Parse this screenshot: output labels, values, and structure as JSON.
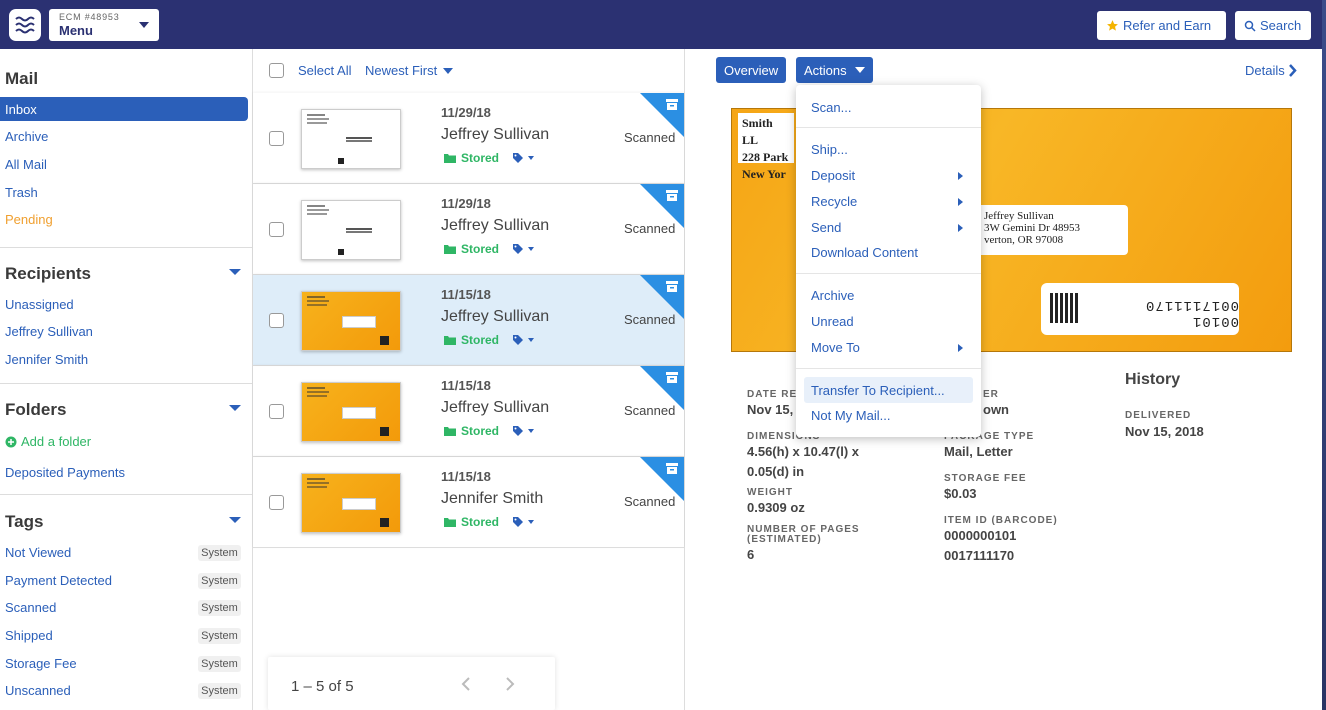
{
  "header": {
    "account_id": "ECM #48953",
    "menu_label": "Menu",
    "refer_label": "Refer and Earn",
    "search_label": "Search"
  },
  "sidebar": {
    "mail_title": "Mail",
    "mail_items": [
      "Inbox",
      "Archive",
      "All Mail",
      "Trash",
      "Pending"
    ],
    "recipients_title": "Recipients",
    "recipients": [
      "Unassigned",
      "Jeffrey Sullivan",
      "Jennifer Smith"
    ],
    "folders_title": "Folders",
    "add_folder": "Add a folder",
    "folders": [
      "Deposited Payments"
    ],
    "tags_title": "Tags",
    "tags": [
      {
        "label": "Not Viewed",
        "badge": "System"
      },
      {
        "label": "Payment Detected",
        "badge": "System"
      },
      {
        "label": "Scanned",
        "badge": "System"
      },
      {
        "label": "Shipped",
        "badge": "System"
      },
      {
        "label": "Storage Fee",
        "badge": "System"
      },
      {
        "label": "Unscanned",
        "badge": "System"
      }
    ]
  },
  "list": {
    "select_all": "Select All",
    "sort": "Newest First",
    "rows": [
      {
        "date": "11/29/18",
        "name": "Jeffrey Sullivan",
        "stored": "Stored",
        "status": "Scanned",
        "thumb": "white"
      },
      {
        "date": "11/29/18",
        "name": "Jeffrey Sullivan",
        "stored": "Stored",
        "status": "Scanned",
        "thumb": "white"
      },
      {
        "date": "11/15/18",
        "name": "Jeffrey Sullivan",
        "stored": "Stored",
        "status": "Scanned",
        "thumb": "orange"
      },
      {
        "date": "11/15/18",
        "name": "Jeffrey Sullivan",
        "stored": "Stored",
        "status": "Scanned",
        "thumb": "orange"
      },
      {
        "date": "11/15/18",
        "name": "Jennifer Smith",
        "stored": "Stored",
        "status": "Scanned",
        "thumb": "orange"
      }
    ],
    "pagination": "1 – 5 of 5"
  },
  "detail": {
    "overview_label": "Overview",
    "actions_label": "Actions",
    "details_label": "Details",
    "envelope": {
      "return_lines": [
        "Smith LL",
        "228 Park",
        "New Yor"
      ],
      "address_lines": [
        "Jeffrey Sullivan",
        "3W Gemini Dr 48953",
        "verton, OR 97008"
      ],
      "barcode": "00101 0017111170"
    },
    "fields": {
      "date_label": "DATE RE",
      "date_value": "Nov 15,",
      "sender_label": "ER",
      "sender_value": "own",
      "dimensions_label": "DIMENSIONS",
      "dimensions_value": "4.56(h) x 10.47(l) x 0.05(d) in",
      "package_label": "PACKAGE TYPE",
      "package_value": "Mail, Letter",
      "weight_label": "WEIGHT",
      "weight_value": "0.9309 oz",
      "storage_label": "STORAGE FEE",
      "storage_value": "$0.03",
      "pages_label": "NUMBER OF PAGES (ESTIMATED)",
      "pages_value": "6",
      "barcode_label": "ITEM ID (BARCODE)",
      "barcode_value1": "0000000101",
      "barcode_value2": "0017111170"
    },
    "history": {
      "title": "History",
      "delivered_label": "DELIVERED",
      "delivered_value": "Nov 15, 2018"
    }
  },
  "actions_menu": {
    "scan": "Scan...",
    "ship": "Ship...",
    "deposit": "Deposit",
    "recycle": "Recycle",
    "send": "Send",
    "download": "Download Content",
    "archive": "Archive",
    "unread": "Unread",
    "move_to": "Move To",
    "transfer": "Transfer To Recipient...",
    "not_my_mail": "Not My Mail..."
  },
  "colors": {
    "header_bg": "#2b3172",
    "link_blue": "#2b5fb9",
    "stored_green": "#2fb665",
    "pending_orange": "#f0a030",
    "corner_blue": "#2b8fe3"
  }
}
